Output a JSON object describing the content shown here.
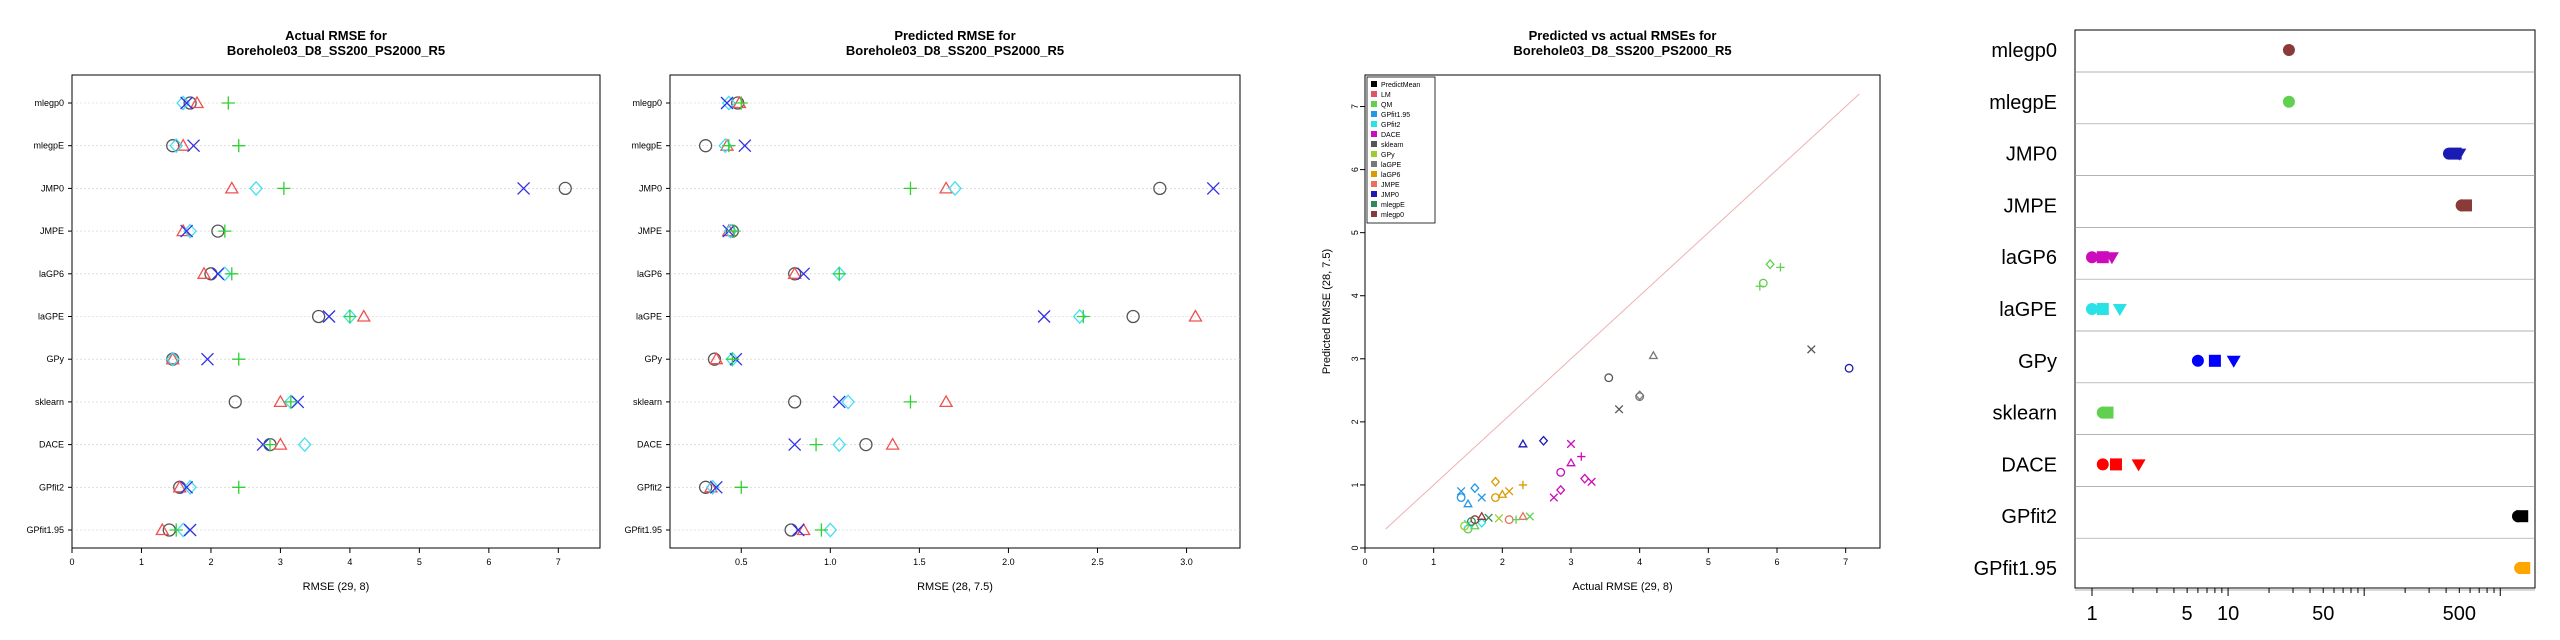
{
  "colors": {
    "PredictMean": "#000000",
    "LM": "#DF536B",
    "QM": "#61D04F",
    "GPfit1.95": "#2297E6",
    "GPfit2": "#28E2E5",
    "DACE": "#CD0BBC",
    "sklearn": "#555555",
    "GPy": "#9ACD32",
    "laGPE": "#787878",
    "laGP6": "#D89B00",
    "JMPE": "#E8705C",
    "JMP0": "#1A1AB4",
    "mlegpE": "#2E8B57",
    "mlegp0": "#8B3A3A",
    "r_circle": "#555555",
    "r_tri": "#F05050",
    "r_diamond": "#40E0F0",
    "r_x": "#3030E8",
    "r_plus": "#30D030"
  },
  "chart_data": [
    {
      "type": "scatter",
      "title_line1": "Actual RMSE for",
      "title_line2": "Borehole03_D8_SS200_PS2000_R5",
      "xlabel": "RMSE (29, 8)",
      "xlim": [
        0,
        7.6
      ],
      "xticks": [
        0,
        1,
        2,
        3,
        4,
        5,
        6,
        7
      ],
      "categories": [
        "mlegp0",
        "mlegpE",
        "JMP0",
        "JMPE",
        "laGP6",
        "laGPE",
        "GPy",
        "sklearn",
        "DACE",
        "GPfit2",
        "GPfit1.95"
      ],
      "series": [
        {
          "marker": "circle",
          "color": "r_circle",
          "values": [
            1.7,
            1.45,
            7.1,
            2.1,
            2.0,
            3.55,
            1.45,
            2.35,
            2.85,
            1.55,
            1.4
          ]
        },
        {
          "marker": "tri",
          "color": "r_tri",
          "values": [
            1.8,
            1.6,
            2.3,
            1.6,
            1.9,
            4.2,
            1.45,
            3.0,
            3.0,
            1.55,
            1.3
          ]
        },
        {
          "marker": "diamond",
          "color": "r_diamond",
          "values": [
            1.6,
            1.5,
            2.65,
            1.7,
            2.2,
            4.0,
            1.45,
            3.15,
            3.35,
            1.7,
            1.6
          ]
        },
        {
          "marker": "x",
          "color": "r_x",
          "values": [
            1.65,
            1.75,
            6.5,
            1.65,
            2.1,
            3.7,
            1.95,
            3.25,
            2.75,
            1.65,
            1.7
          ]
        },
        {
          "marker": "plus",
          "color": "r_plus",
          "values": [
            2.25,
            2.4,
            3.05,
            2.2,
            2.3,
            4.0,
            2.4,
            3.15,
            2.85,
            2.4,
            1.5
          ]
        }
      ]
    },
    {
      "type": "scatter",
      "title_line1": "Predicted RMSE for",
      "title_line2": "Borehole03_D8_SS200_PS2000_R5",
      "xlabel": "RMSE (28, 7.5)",
      "xlim": [
        0.1,
        3.3
      ],
      "xticks": [
        0.5,
        1.0,
        1.5,
        2.0,
        2.5,
        3.0
      ],
      "xticklabels": [
        "0.5",
        "1.0",
        "1.5",
        "2.0",
        "2.5",
        "3.0"
      ],
      "categories": [
        "mlegp0",
        "mlegpE",
        "JMP0",
        "JMPE",
        "laGP6",
        "laGPE",
        "GPy",
        "sklearn",
        "DACE",
        "GPfit2",
        "GPfit1.95"
      ],
      "series": [
        {
          "marker": "circle",
          "color": "r_circle",
          "values": [
            0.48,
            0.3,
            2.85,
            0.45,
            0.8,
            2.7,
            0.35,
            0.8,
            1.2,
            0.3,
            0.78
          ]
        },
        {
          "marker": "tri",
          "color": "r_tri",
          "values": [
            0.49,
            0.42,
            1.65,
            0.43,
            0.8,
            3.05,
            0.36,
            1.65,
            1.35,
            0.33,
            0.85
          ]
        },
        {
          "marker": "diamond",
          "color": "r_diamond",
          "values": [
            0.43,
            0.41,
            1.7,
            0.44,
            1.05,
            2.4,
            0.45,
            1.1,
            1.05,
            0.34,
            1.0
          ]
        },
        {
          "marker": "x",
          "color": "r_x",
          "values": [
            0.42,
            0.52,
            3.15,
            0.43,
            0.85,
            2.2,
            0.47,
            1.05,
            0.8,
            0.36,
            0.82
          ]
        },
        {
          "marker": "plus",
          "color": "r_plus",
          "values": [
            0.5,
            0.43,
            1.45,
            0.46,
            1.05,
            2.42,
            0.45,
            1.45,
            0.92,
            0.5,
            0.95
          ]
        }
      ]
    },
    {
      "type": "scatter",
      "title_line1": "Predicted vs actual RMSEs for",
      "title_line2": "Borehole03_D8_SS200_PS2000_R5",
      "xlabel": "Actual RMSE (29, 8)",
      "ylabel": "Predicted RMSE (28, 7.5)",
      "xlim": [
        0,
        7.5
      ],
      "ylim": [
        0,
        7.5
      ],
      "xticks": [
        0,
        1,
        2,
        3,
        4,
        5,
        6,
        7
      ],
      "yticks": [
        0,
        1,
        2,
        3,
        4,
        5,
        6,
        7
      ],
      "legend": [
        "PredictMean",
        "LM",
        "QM",
        "GPfit1.95",
        "GPfit2",
        "DACE",
        "sklearn",
        "GPy",
        "laGPE",
        "laGP6",
        "JMPE",
        "JMP0",
        "mlegpE",
        "mlegp0"
      ],
      "legend_position": "top-left",
      "points": [
        {
          "x": 1.4,
          "y": 0.9,
          "c": "GPfit1.95",
          "m": "x"
        },
        {
          "x": 1.4,
          "y": 0.8,
          "c": "GPfit1.95",
          "m": "circle"
        },
        {
          "x": 1.5,
          "y": 0.7,
          "c": "GPfit1.95",
          "m": "tri"
        },
        {
          "x": 1.6,
          "y": 0.95,
          "c": "GPfit1.95",
          "m": "diamond"
        },
        {
          "x": 1.7,
          "y": 0.8,
          "c": "GPfit1.95",
          "m": "x"
        },
        {
          "x": 1.5,
          "y": 0.3,
          "c": "QM",
          "m": "circle"
        },
        {
          "x": 1.6,
          "y": 0.35,
          "c": "QM",
          "m": "tri"
        },
        {
          "x": 1.7,
          "y": 0.4,
          "c": "GPfit2",
          "m": "diamond"
        },
        {
          "x": 1.5,
          "y": 0.38,
          "c": "GPfit2",
          "m": "x"
        },
        {
          "x": 1.6,
          "y": 0.45,
          "c": "mlegp0",
          "m": "circle"
        },
        {
          "x": 1.7,
          "y": 0.5,
          "c": "mlegp0",
          "m": "tri"
        },
        {
          "x": 1.8,
          "y": 0.48,
          "c": "mlegpE",
          "m": "x"
        },
        {
          "x": 1.55,
          "y": 0.42,
          "c": "mlegpE",
          "m": "circle"
        },
        {
          "x": 1.45,
          "y": 0.35,
          "c": "GPy",
          "m": "circle"
        },
        {
          "x": 1.95,
          "y": 0.47,
          "c": "GPy",
          "m": "x"
        },
        {
          "x": 1.9,
          "y": 0.8,
          "c": "laGP6",
          "m": "circle"
        },
        {
          "x": 2.0,
          "y": 0.85,
          "c": "laGP6",
          "m": "tri"
        },
        {
          "x": 2.1,
          "y": 0.9,
          "c": "laGP6",
          "m": "x"
        },
        {
          "x": 1.9,
          "y": 1.05,
          "c": "laGP6",
          "m": "diamond"
        },
        {
          "x": 2.3,
          "y": 1.0,
          "c": "laGP6",
          "m": "plus"
        },
        {
          "x": 2.1,
          "y": 0.45,
          "c": "JMPE",
          "m": "circle"
        },
        {
          "x": 2.3,
          "y": 0.5,
          "c": "JMPE",
          "m": "tri"
        },
        {
          "x": 2.2,
          "y": 0.45,
          "c": "QM",
          "m": "plus"
        },
        {
          "x": 2.4,
          "y": 0.5,
          "c": "QM",
          "m": "x"
        },
        {
          "x": 2.3,
          "y": 1.65,
          "c": "JMP0",
          "m": "tri"
        },
        {
          "x": 2.6,
          "y": 1.7,
          "c": "JMP0",
          "m": "diamond"
        },
        {
          "x": 2.85,
          "y": 1.2,
          "c": "DACE",
          "m": "circle"
        },
        {
          "x": 3.0,
          "y": 1.35,
          "c": "DACE",
          "m": "tri"
        },
        {
          "x": 3.0,
          "y": 1.65,
          "c": "DACE",
          "m": "x"
        },
        {
          "x": 3.15,
          "y": 1.45,
          "c": "DACE",
          "m": "plus"
        },
        {
          "x": 2.75,
          "y": 0.8,
          "c": "DACE",
          "m": "x"
        },
        {
          "x": 2.85,
          "y": 0.92,
          "c": "DACE",
          "m": "diamond"
        },
        {
          "x": 3.2,
          "y": 1.1,
          "c": "DACE",
          "m": "diamond"
        },
        {
          "x": 3.3,
          "y": 1.05,
          "c": "DACE",
          "m": "x"
        },
        {
          "x": 3.55,
          "y": 2.7,
          "c": "sklearn",
          "m": "circle"
        },
        {
          "x": 3.7,
          "y": 2.2,
          "c": "sklearn",
          "m": "x"
        },
        {
          "x": 4.0,
          "y": 2.4,
          "c": "laGPE",
          "m": "circle"
        },
        {
          "x": 4.2,
          "y": 3.05,
          "c": "laGPE",
          "m": "tri"
        },
        {
          "x": 4.0,
          "y": 2.42,
          "c": "laGPE",
          "m": "diamond"
        },
        {
          "x": 5.75,
          "y": 4.15,
          "c": "QM",
          "m": "plus"
        },
        {
          "x": 5.8,
          "y": 4.2,
          "c": "QM",
          "m": "circle"
        },
        {
          "x": 5.9,
          "y": 4.5,
          "c": "QM",
          "m": "diamond"
        },
        {
          "x": 6.05,
          "y": 4.45,
          "c": "QM",
          "m": "plus"
        },
        {
          "x": 6.5,
          "y": 3.15,
          "c": "sklearn",
          "m": "x"
        },
        {
          "x": 7.05,
          "y": 2.85,
          "c": "JMP0",
          "m": "circle"
        }
      ]
    },
    {
      "type": "scatter",
      "xscale": "log",
      "xlim": [
        0.75,
        1800
      ],
      "xticks": [
        1,
        5,
        10,
        50,
        500
      ],
      "xticklabels": [
        "1",
        "5",
        "10",
        "50",
        "500"
      ],
      "categories": [
        "mlegp0",
        "mlegpE",
        "JMP0",
        "JMPE",
        "laGP6",
        "laGPE",
        "GPy",
        "sklearn",
        "DACE",
        "GPfit2",
        "GPfit1.95"
      ],
      "series": [
        {
          "name": "mlegp0",
          "color": "mlegp0",
          "values": [
            28
          ]
        },
        {
          "name": "mlegpE",
          "color": "QM",
          "values": [
            28
          ]
        },
        {
          "name": "JMP0",
          "color": "JMP0",
          "values": [
            420,
            470,
            500
          ]
        },
        {
          "name": "JMPE",
          "color": "mlegp0",
          "values": [
            520,
            560
          ]
        },
        {
          "name": "laGP6",
          "color": "DACE",
          "values": [
            1.0,
            1.2,
            1.4
          ]
        },
        {
          "name": "laGPE",
          "color": "GPfit2",
          "values": [
            1.0,
            1.2,
            1.6
          ]
        },
        {
          "name": "GPy",
          "color": "JMP0_bright",
          "values": [
            6,
            8,
            11
          ]
        },
        {
          "name": "sklearn",
          "color": "QM",
          "values": [
            1.2,
            1.3
          ]
        },
        {
          "name": "DACE",
          "color": "LM_red",
          "values": [
            1.2,
            1.5,
            2.2
          ]
        },
        {
          "name": "GPfit2",
          "color": "PredictMean",
          "values": [
            1350,
            1450
          ]
        },
        {
          "name": "GPfit1.95",
          "color": "GPfit195_orange",
          "values": [
            1400,
            1500
          ]
        }
      ],
      "extra_colors": {
        "JMP0_bright": "#0000FF",
        "LM_red": "#FF0000",
        "GPfit195_orange": "#FFA500",
        "mlegp0_dark": "#8B3A3A"
      }
    }
  ]
}
